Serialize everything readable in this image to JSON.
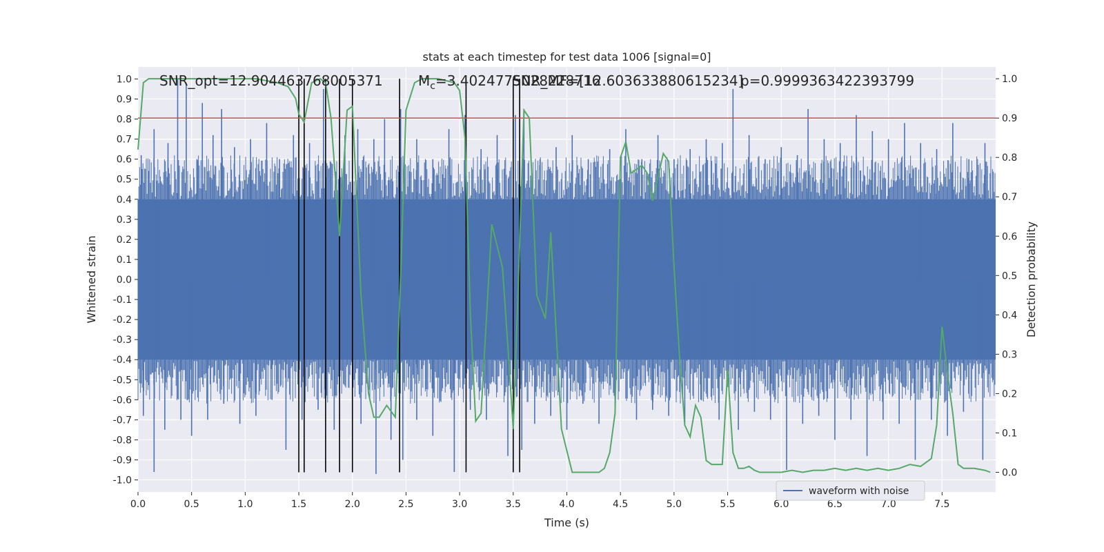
{
  "chart_data": {
    "type": "line",
    "title": "stats at each timestep for test data 1006 [signal=0]",
    "xlabel": "Time (s)",
    "ylabel_left": "Whitened strain",
    "ylabel_right": "Detection probability",
    "xlim": [
      0.0,
      8.0
    ],
    "ylim_left": [
      -1.06,
      1.06
    ],
    "ylim_right": [
      -0.05,
      1.03
    ],
    "x_ticks": [
      "0.0",
      "0.5",
      "1.0",
      "1.5",
      "2.0",
      "2.5",
      "3.0",
      "3.5",
      "4.0",
      "4.5",
      "5.0",
      "5.5",
      "6.0",
      "6.5",
      "7.0",
      "7.5"
    ],
    "y_ticks_left": [
      "1.0",
      "0.9",
      "0.8",
      "0.7",
      "0.6",
      "0.5",
      "0.4",
      "0.3",
      "0.2",
      "0.1",
      "0.0",
      "-0.1",
      "-0.2",
      "-0.3",
      "-0.4",
      "-0.5",
      "-0.6",
      "-0.7",
      "-0.8",
      "-0.9",
      "-1.0"
    ],
    "y_ticks_right": [
      "1.0",
      "0.9",
      "0.8",
      "0.7",
      "0.6",
      "0.5",
      "0.4",
      "0.3",
      "0.2",
      "0.1",
      "0.0"
    ],
    "grid": true,
    "legend": {
      "position": "lower-right",
      "entries": [
        "waveform with noise"
      ]
    },
    "annotations": [
      "SNR_opt=12.904463768005371",
      "$M_c$=3.4024775028228716",
      "SNR_MF=[12.603633880615234]",
      "p=0.9999363422393799"
    ],
    "threshold": {
      "value": 0.9,
      "axis": "right",
      "color": "#c44e52"
    },
    "vertical_markers_s": [
      1.5,
      1.55,
      1.75,
      1.88,
      2.0,
      2.44,
      3.06,
      3.5,
      3.56
    ],
    "waveform": {
      "name": "waveform with noise",
      "color": "#4c72b0",
      "description_values": {
        "typical_amplitude": 0.4,
        "peak_amplitude": 1.0
      },
      "spikes_up": [
        [
          0.03,
          0.62
        ],
        [
          0.15,
          0.75
        ],
        [
          0.28,
          0.68
        ],
        [
          0.37,
          1.0
        ],
        [
          0.45,
          0.98
        ],
        [
          0.55,
          0.6
        ],
        [
          0.6,
          0.88
        ],
        [
          0.7,
          0.72
        ],
        [
          0.78,
          0.85
        ],
        [
          0.9,
          0.66
        ],
        [
          1.05,
          0.7
        ],
        [
          1.2,
          0.78
        ],
        [
          1.32,
          0.6
        ],
        [
          1.45,
          0.72
        ],
        [
          1.6,
          0.68
        ],
        [
          1.73,
          0.95
        ],
        [
          1.93,
          0.72
        ],
        [
          2.05,
          0.75
        ],
        [
          2.2,
          0.7
        ],
        [
          2.3,
          0.8
        ],
        [
          2.45,
          0.85
        ],
        [
          2.6,
          0.7
        ],
        [
          2.75,
          0.6
        ],
        [
          2.9,
          0.75
        ],
        [
          3.05,
          0.82
        ],
        [
          3.2,
          0.65
        ],
        [
          3.35,
          0.72
        ],
        [
          3.52,
          0.82
        ],
        [
          3.6,
          0.85
        ],
        [
          3.75,
          0.6
        ],
        [
          3.9,
          0.66
        ],
        [
          4.05,
          0.72
        ],
        [
          4.2,
          0.6
        ],
        [
          4.4,
          0.65
        ],
        [
          4.55,
          0.75
        ],
        [
          4.7,
          0.6
        ],
        [
          4.85,
          0.72
        ],
        [
          5.0,
          0.6
        ],
        [
          5.15,
          0.65
        ],
        [
          5.3,
          0.7
        ],
        [
          5.45,
          0.68
        ],
        [
          5.55,
          0.95
        ],
        [
          5.7,
          0.72
        ],
        [
          5.85,
          0.6
        ],
        [
          6.0,
          0.66
        ],
        [
          6.15,
          0.62
        ],
        [
          6.25,
          0.85
        ],
        [
          6.4,
          0.7
        ],
        [
          6.55,
          0.68
        ],
        [
          6.7,
          0.82
        ],
        [
          6.85,
          0.74
        ],
        [
          7.0,
          0.7
        ],
        [
          7.15,
          0.78
        ],
        [
          7.3,
          0.68
        ],
        [
          7.45,
          0.65
        ],
        [
          7.6,
          0.78
        ],
        [
          7.75,
          0.6
        ],
        [
          7.9,
          0.68
        ]
      ],
      "spikes_down": [
        [
          0.05,
          -0.68
        ],
        [
          0.15,
          -0.96
        ],
        [
          0.25,
          -0.75
        ],
        [
          0.4,
          -0.7
        ],
        [
          0.5,
          -0.78
        ],
        [
          0.65,
          -0.7
        ],
        [
          0.8,
          -0.62
        ],
        [
          0.95,
          -0.72
        ],
        [
          1.1,
          -0.68
        ],
        [
          1.25,
          -0.6
        ],
        [
          1.38,
          -0.85
        ],
        [
          1.53,
          -0.7
        ],
        [
          1.68,
          -0.65
        ],
        [
          1.83,
          -0.75
        ],
        [
          2.08,
          -0.72
        ],
        [
          2.22,
          -0.97
        ],
        [
          2.36,
          -0.8
        ],
        [
          2.47,
          -0.9
        ],
        [
          2.6,
          -0.7
        ],
        [
          2.75,
          -0.78
        ],
        [
          2.95,
          -0.96
        ],
        [
          3.1,
          -0.65
        ],
        [
          3.25,
          -0.7
        ],
        [
          3.45,
          -0.88
        ],
        [
          3.58,
          -0.85
        ],
        [
          3.7,
          -0.72
        ],
        [
          3.85,
          -0.68
        ],
        [
          4.0,
          -0.75
        ],
        [
          4.15,
          -0.62
        ],
        [
          4.3,
          -0.72
        ],
        [
          4.45,
          -0.66
        ],
        [
          4.65,
          -0.7
        ],
        [
          4.8,
          -0.65
        ],
        [
          4.95,
          -0.68
        ],
        [
          5.1,
          -0.72
        ],
        [
          5.25,
          -0.6
        ],
        [
          5.42,
          -0.7
        ],
        [
          5.6,
          -0.75
        ],
        [
          5.75,
          -0.66
        ],
        [
          5.9,
          -0.7
        ],
        [
          6.05,
          -0.95
        ],
        [
          6.2,
          -0.72
        ],
        [
          6.35,
          -0.68
        ],
        [
          6.5,
          -0.8
        ],
        [
          6.65,
          -0.7
        ],
        [
          6.8,
          -0.88
        ],
        [
          6.95,
          -0.7
        ],
        [
          7.1,
          -0.72
        ],
        [
          7.25,
          -0.9
        ],
        [
          7.4,
          -0.7
        ],
        [
          7.55,
          -0.78
        ],
        [
          7.7,
          -0.66
        ],
        [
          7.88,
          -0.9
        ]
      ]
    },
    "detection_probability": {
      "color": "#55a868",
      "x": [
        0.0,
        0.05,
        0.1,
        0.2,
        0.4,
        0.6,
        0.8,
        1.0,
        1.1,
        1.2,
        1.3,
        1.4,
        1.47,
        1.5,
        1.55,
        1.62,
        1.7,
        1.75,
        1.8,
        1.88,
        1.95,
        2.0,
        2.08,
        2.15,
        2.2,
        2.25,
        2.32,
        2.4,
        2.45,
        2.5,
        2.58,
        2.65,
        2.8,
        2.95,
        3.0,
        3.05,
        3.1,
        3.15,
        3.2,
        3.3,
        3.4,
        3.45,
        3.5,
        3.55,
        3.6,
        3.65,
        3.72,
        3.8,
        3.85,
        3.95,
        4.05,
        4.15,
        4.25,
        4.3,
        4.35,
        4.4,
        4.45,
        4.5,
        4.55,
        4.6,
        4.7,
        4.75,
        4.8,
        4.9,
        4.95,
        5.0,
        5.05,
        5.1,
        5.15,
        5.2,
        5.25,
        5.3,
        5.35,
        5.45,
        5.5,
        5.55,
        5.6,
        5.65,
        5.7,
        5.75,
        5.8,
        5.9,
        6.0,
        6.1,
        6.2,
        6.3,
        6.4,
        6.5,
        6.6,
        6.7,
        6.8,
        6.9,
        7.0,
        7.1,
        7.2,
        7.3,
        7.4,
        7.45,
        7.5,
        7.55,
        7.6,
        7.65,
        7.7,
        7.8,
        7.9,
        7.95
      ],
      "y": [
        0.82,
        0.99,
        1.0,
        1.0,
        1.0,
        1.0,
        1.0,
        1.0,
        1.0,
        0.995,
        0.99,
        0.98,
        0.95,
        0.91,
        0.89,
        0.99,
        1.0,
        0.99,
        0.9,
        0.6,
        0.92,
        0.93,
        0.45,
        0.2,
        0.14,
        0.14,
        0.17,
        0.14,
        0.5,
        0.92,
        0.99,
        1.0,
        1.0,
        0.99,
        0.97,
        0.85,
        0.4,
        0.13,
        0.15,
        0.63,
        0.52,
        0.32,
        0.11,
        0.5,
        0.92,
        0.9,
        0.45,
        0.39,
        0.61,
        0.11,
        0.0,
        0.0,
        0.0,
        0.0,
        0.01,
        0.05,
        0.15,
        0.8,
        0.84,
        0.76,
        0.78,
        0.76,
        0.69,
        0.81,
        0.79,
        0.52,
        0.3,
        0.12,
        0.09,
        0.17,
        0.14,
        0.03,
        0.02,
        0.02,
        0.26,
        0.05,
        0.01,
        0.01,
        0.015,
        0.005,
        0.0,
        0.0,
        0.0,
        0.005,
        0.0,
        0.005,
        0.005,
        0.01,
        0.005,
        0.01,
        0.005,
        0.01,
        0.005,
        0.01,
        0.02,
        0.015,
        0.035,
        0.12,
        0.37,
        0.25,
        0.15,
        0.02,
        0.01,
        0.01,
        0.005,
        0.0
      ],
      "x_extend": [
        1.5,
        1.55,
        1.58,
        1.62,
        1.66,
        1.7,
        1.75,
        1.78,
        1.82,
        1.88
      ],
      "y_extend": [
        0.91,
        0.89,
        0.96,
        1.0,
        1.0,
        0.99,
        0.99,
        0.93,
        0.74,
        0.6
      ]
    }
  }
}
